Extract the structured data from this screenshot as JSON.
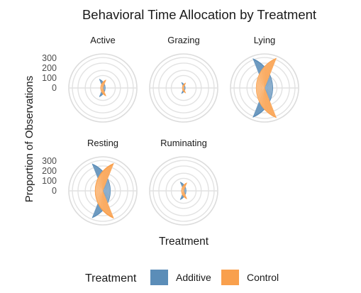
{
  "chart_data": {
    "type": "polar-bar",
    "title": "Behavioral Time Allocation by Treatment",
    "xlabel": "Treatment",
    "ylabel": "Proportion of Observations",
    "y_ticks": [
      0,
      100,
      200,
      300
    ],
    "ylim": [
      0,
      375
    ],
    "grid": true,
    "legend": {
      "title": "Treatment",
      "placement": "bottom",
      "entries": [
        "Additive",
        "Control"
      ]
    },
    "colors": {
      "Additive": "#5b8db8",
      "Control": "#f9a04d"
    },
    "facets": [
      {
        "label": "Active",
        "values": {
          "Additive": 30,
          "Control": 25
        }
      },
      {
        "label": "Grazing",
        "values": {
          "Additive": 12,
          "Control": 10
        }
      },
      {
        "label": "Lying",
        "values": {
          "Additive": 325,
          "Control": 335
        }
      },
      {
        "label": "Resting",
        "values": {
          "Additive": 275,
          "Control": 285
        }
      },
      {
        "label": "Ruminating",
        "values": {
          "Additive": 30,
          "Control": 25
        }
      }
    ]
  }
}
